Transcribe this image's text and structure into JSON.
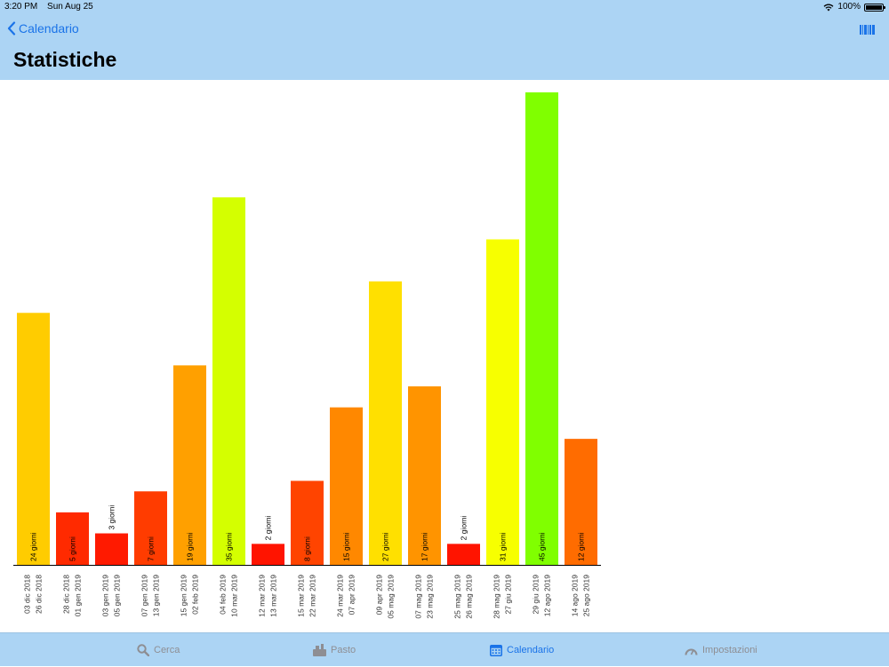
{
  "status": {
    "time": "3:20 PM",
    "date": "Sun Aug 25",
    "battery": "100%"
  },
  "nav": {
    "back_label": "Calendario",
    "title": "Statistiche"
  },
  "tabs": [
    {
      "label": "Cerca",
      "icon": "search-icon"
    },
    {
      "label": "Pasto",
      "icon": "food-icon"
    },
    {
      "label": "Calendario",
      "icon": "calendar-icon",
      "active": true
    },
    {
      "label": "Impostazioni",
      "icon": "gauge-icon"
    }
  ],
  "chart_data": {
    "type": "bar",
    "unit_label": "giorni",
    "bars": [
      {
        "value": 24,
        "label": "24 giorni",
        "start": "03 dic 2018",
        "end": "26 dic 2018",
        "color": "#ffcc00"
      },
      {
        "value": 5,
        "label": "5 giorni",
        "start": "28 dic 2018",
        "end": "01 gen 2019",
        "color": "#ff2a00"
      },
      {
        "value": 3,
        "label": "3 giorni",
        "start": "03 gen 2019",
        "end": "05 gen 2019",
        "color": "#ff1a00"
      },
      {
        "value": 7,
        "label": "7 giorni",
        "start": "07 gen 2019",
        "end": "13 gen 2019",
        "color": "#ff3c00"
      },
      {
        "value": 19,
        "label": "19 giorni",
        "start": "15 gen 2019",
        "end": "02 feb 2019",
        "color": "#ffa000"
      },
      {
        "value": 35,
        "label": "35 giorni",
        "start": "04 feb 2019",
        "end": "10 mar 2019",
        "color": "#d4ff00"
      },
      {
        "value": 2,
        "label": "2 giorni",
        "start": "12 mar 2019",
        "end": "13 mar 2019",
        "color": "#ff1400"
      },
      {
        "value": 8,
        "label": "8 giorni",
        "start": "15 mar 2019",
        "end": "22 mar 2019",
        "color": "#ff4400"
      },
      {
        "value": 15,
        "label": "15 giorni",
        "start": "24 mar 2019",
        "end": "07 apr 2019",
        "color": "#ff8800"
      },
      {
        "value": 27,
        "label": "27 giorni",
        "start": "09 apr 2019",
        "end": "05 mag 2019",
        "color": "#ffe000"
      },
      {
        "value": 17,
        "label": "17 giorni",
        "start": "07 mag 2019",
        "end": "23 mag 2019",
        "color": "#ff9400"
      },
      {
        "value": 2,
        "label": "2 giorni",
        "start": "25 mag 2019",
        "end": "26 mag 2019",
        "color": "#ff1400"
      },
      {
        "value": 31,
        "label": "31 giorni",
        "start": "28 mag 2019",
        "end": "27 giu 2019",
        "color": "#f7ff00"
      },
      {
        "value": 45,
        "label": "45 giorni",
        "start": "29 giu 2019",
        "end": "12 ago 2019",
        "color": "#80ff00"
      },
      {
        "value": 12,
        "label": "12 giorni",
        "start": "14 ago 2019",
        "end": "25 ago 2019",
        "color": "#ff6c00"
      }
    ]
  }
}
